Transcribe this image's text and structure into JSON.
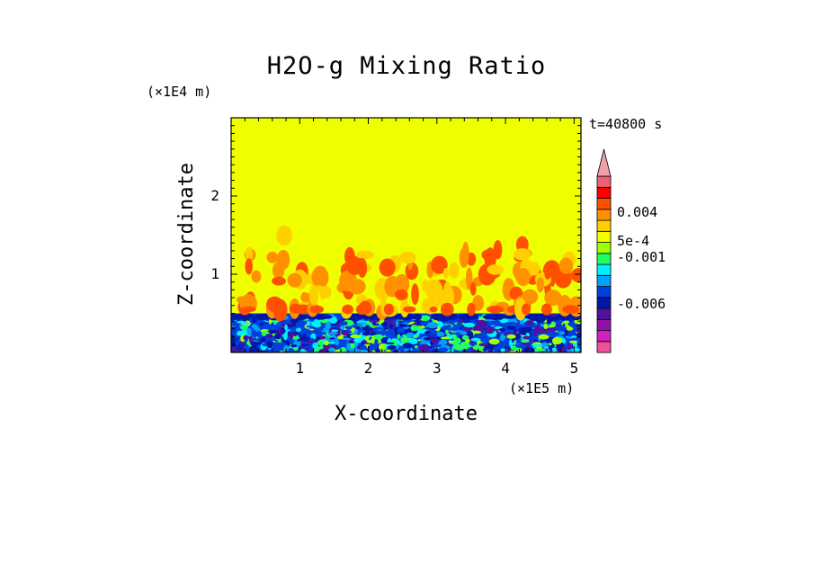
{
  "chart_data": {
    "type": "heatmap",
    "title": "H2O-g Mixing Ratio",
    "xlabel": "X-coordinate",
    "ylabel": "Z-coordinate",
    "x_scale_label": "(×1E5 m)",
    "y_scale_label": "(×1E4 m)",
    "time_label": "t=40800 s",
    "xlim": [
      0,
      5.1
    ],
    "ylim": [
      0,
      3.0
    ],
    "x_ticks": [
      "1",
      "2",
      "3",
      "4",
      "5"
    ],
    "y_ticks": [
      "1",
      "2"
    ],
    "grid": false,
    "background_value_color": "#f0ff00",
    "colorbar": {
      "labels": [
        "0.004",
        "5e-4",
        "-0.001",
        "-0.006"
      ],
      "levels": [
        {
          "color": "#f0509a"
        },
        {
          "color": "#d020c0"
        },
        {
          "color": "#9010a8"
        },
        {
          "color": "#5010a0"
        },
        {
          "color": "#0018a8"
        },
        {
          "color": "#0040e0"
        },
        {
          "color": "#00a0ff"
        },
        {
          "color": "#00f0ff"
        },
        {
          "color": "#20ff60"
        },
        {
          "color": "#a0ff00"
        },
        {
          "color": "#f0ff00"
        },
        {
          "color": "#ffd000"
        },
        {
          "color": "#ff9000"
        },
        {
          "color": "#ff5000"
        },
        {
          "color": "#ff0000"
        },
        {
          "color": "#f06070"
        },
        {
          "color": "#f0a0a8"
        }
      ]
    }
  }
}
